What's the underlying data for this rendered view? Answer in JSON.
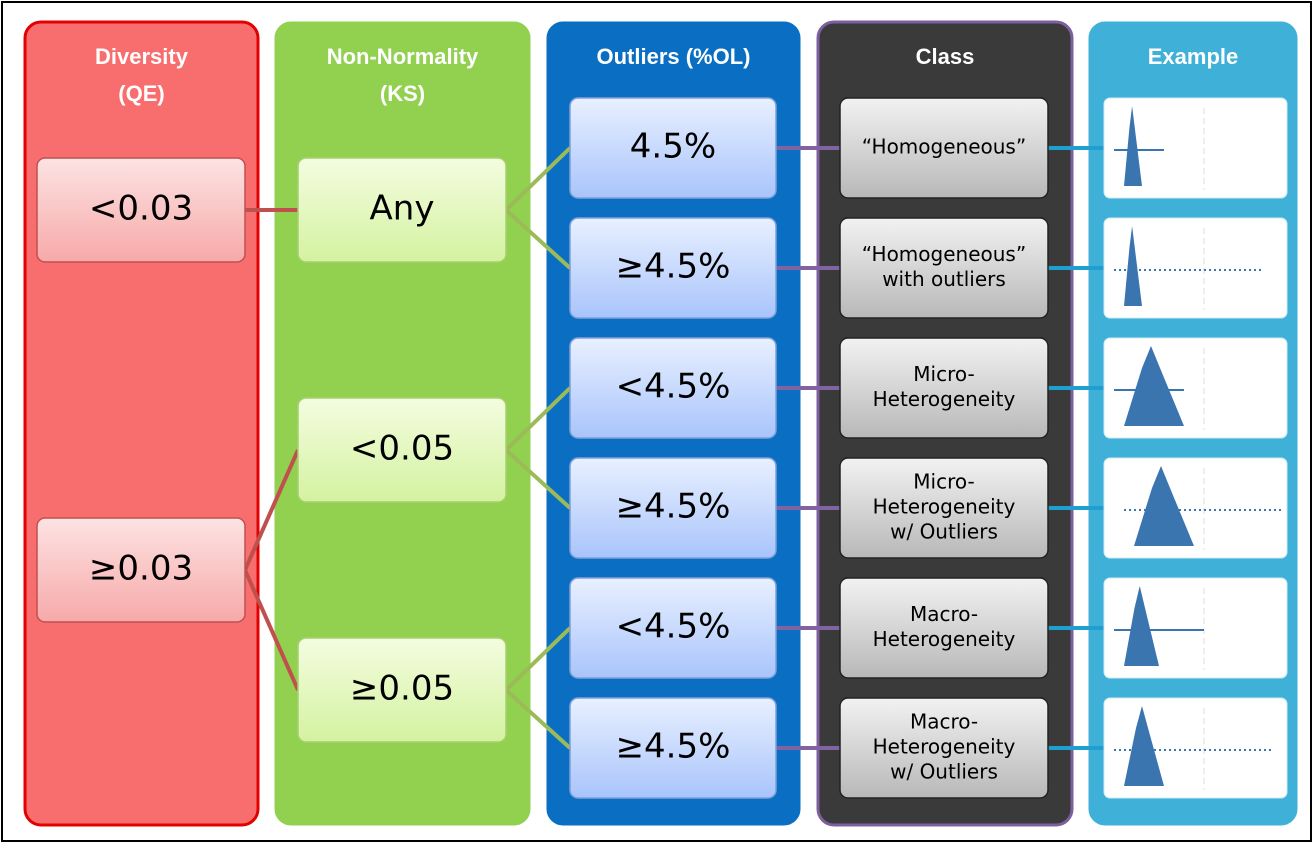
{
  "columns": [
    {
      "header": [
        "Diversity",
        "(QE)"
      ],
      "boxes": [
        [
          "<0.03"
        ],
        [
          "≥0.03"
        ]
      ]
    },
    {
      "header": [
        "Non-Normality",
        "(KS)"
      ],
      "boxes": [
        [
          "Any"
        ],
        [
          "<0.05"
        ],
        [
          "≥0.05"
        ]
      ]
    },
    {
      "header": [
        "Outliers (%OL)"
      ],
      "boxes": [
        [
          "4.5%"
        ],
        [
          "≥4.5%"
        ],
        [
          "<4.5%"
        ],
        [
          "≥4.5%"
        ],
        [
          "<4.5%"
        ],
        [
          "≥4.5%"
        ]
      ]
    },
    {
      "header": [
        "Class"
      ],
      "boxes": [
        [
          "“Homogeneous”"
        ],
        [
          "“Homogeneous”",
          "with outliers"
        ],
        [
          "Micro-",
          "Heterogeneity"
        ],
        [
          "Micro-",
          "Heterogeneity",
          "w/ Outliers"
        ],
        [
          "Macro-",
          "Heterogeneity"
        ],
        [
          "Macro-",
          "Heterogeneity",
          "w/ Outliers"
        ]
      ]
    },
    {
      "header": [
        "Example"
      ],
      "boxes": []
    }
  ]
}
